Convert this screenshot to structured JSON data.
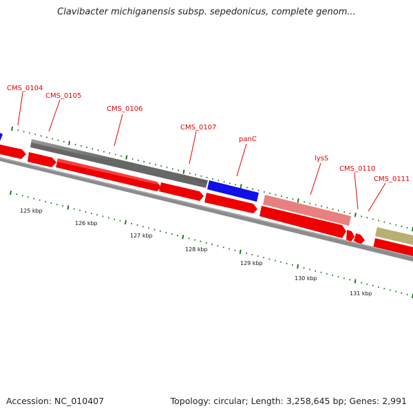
{
  "title": "Clavibacter michiganensis subsp. sepedonicus, complete genom...",
  "accession_text": "Accession: NC_010407",
  "topology_text": "Topology: circular; Length: 3,258,645 bp; Genes: 2,991",
  "gene_labels": [
    "CMS_0104",
    "CMS_0105",
    "CMS_0106",
    "CMS_0107",
    "panC",
    "lysS",
    "CMS_0110",
    "CMS_0111"
  ],
  "kbp_labels": [
    "125 kbp",
    "126 kbp",
    "127 kbp",
    "128 kbp",
    "129 kbp",
    "130 kbp",
    "131 kbp"
  ],
  "colors": {
    "cds_forward_gray": "#666666",
    "blue": "#1010e8",
    "red": "#ee0000",
    "pink": "#e88080",
    "olive": "#b8b070",
    "tick_green": "#1a7a1a",
    "backbone": "#8c8c8c",
    "label_red": "#e00000"
  }
}
